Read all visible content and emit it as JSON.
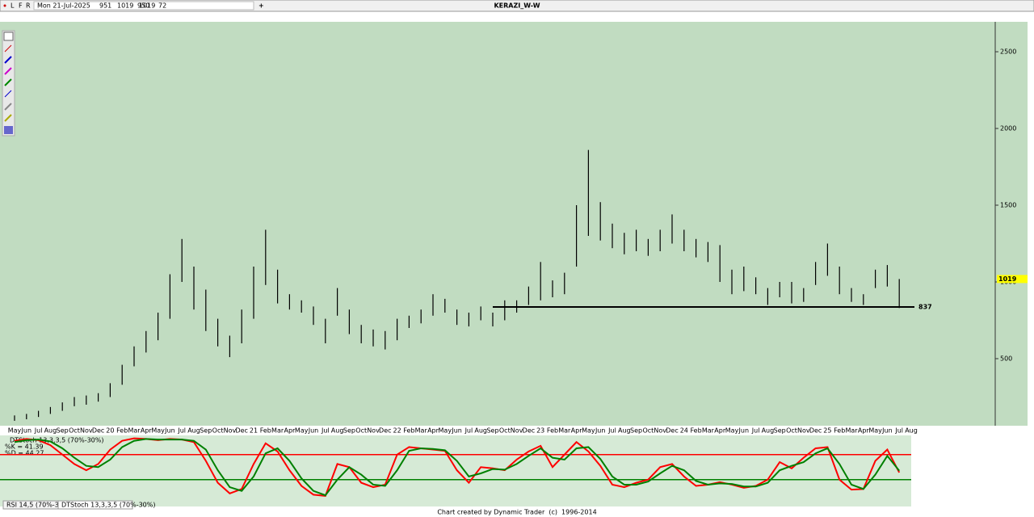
{
  "toolbar": {
    "buttons": [
      "L",
      "F",
      "R"
    ],
    "date": "Mon 21-Jul-2025",
    "open": 951,
    "high": 1019,
    "low": 950,
    "close": 1019,
    "change": 72
  },
  "tabs": [
    "RSI 14,5 (70%-30%)",
    "DTStoch 13,3,3,5 (70%-30%)"
  ],
  "footer": "Chart created by Dynamic Trader  (c)  1996-2014",
  "chart_data": [
    {
      "type": "range",
      "title": "KERAZI_W-W",
      "color": "#000000",
      "categories": [
        "May",
        "Jun",
        "Jul",
        "Aug",
        "Sep",
        "Oct",
        "Nov",
        "Dec",
        "20",
        "Feb",
        "Mar",
        "Apr",
        "May",
        "Jun",
        "Jul",
        "Aug",
        "Sep",
        "Oct",
        "Nov",
        "Dec",
        "21",
        "Feb",
        "Mar",
        "Apr",
        "May",
        "Jun",
        "Jul",
        "Aug",
        "Sep",
        "Oct",
        "Nov",
        "Dec",
        "22",
        "Feb",
        "Mar",
        "Apr",
        "May",
        "Jun",
        "Jul",
        "Aug",
        "Sep",
        "Oct",
        "Nov",
        "Dec",
        "23",
        "Feb",
        "Mar",
        "Apr",
        "May",
        "Jun",
        "Jul",
        "Aug",
        "Sep",
        "Oct",
        "Nov",
        "Dec",
        "24",
        "Feb",
        "Mar",
        "Apr",
        "May",
        "Jun",
        "Jul",
        "Aug",
        "Sep",
        "Oct",
        "Nov",
        "Dec",
        "25",
        "Feb",
        "Mar",
        "Apr",
        "May",
        "Jun",
        "Jul",
        "Aug"
      ],
      "low": [
        95,
        105,
        120,
        140,
        160,
        190,
        200,
        220,
        250,
        330,
        450,
        540,
        620,
        760,
        1000,
        820,
        680,
        580,
        510,
        600,
        760,
        980,
        860,
        820,
        800,
        720,
        600,
        780,
        660,
        600,
        580,
        560,
        620,
        700,
        730,
        780,
        800,
        720,
        710,
        750,
        710,
        750,
        800,
        850,
        880,
        900,
        920,
        1100,
        1300,
        1270,
        1220,
        1180,
        1200,
        1170,
        1200,
        1250,
        1200,
        1160,
        1130,
        1000,
        920,
        940,
        920,
        850,
        900,
        860,
        870,
        980,
        1040,
        920,
        870,
        850,
        960,
        970,
        830,
        null
      ],
      "high": [
        130,
        140,
        160,
        185,
        215,
        250,
        260,
        275,
        340,
        460,
        580,
        680,
        800,
        1050,
        1280,
        1100,
        950,
        760,
        650,
        820,
        1100,
        1340,
        1080,
        920,
        880,
        840,
        760,
        960,
        820,
        720,
        690,
        680,
        760,
        780,
        820,
        920,
        890,
        820,
        800,
        840,
        800,
        880,
        880,
        970,
        1130,
        1010,
        1060,
        1500,
        1860,
        1520,
        1380,
        1320,
        1340,
        1280,
        1340,
        1440,
        1340,
        1280,
        1260,
        1240,
        1080,
        1100,
        1030,
        960,
        1000,
        1000,
        960,
        1130,
        1250,
        1100,
        960,
        920,
        1080,
        1110,
        1019,
        null
      ],
      "ylim": [
        63,
        2695
      ],
      "yticks": [
        500,
        1000,
        1500,
        2000,
        2500
      ],
      "last_value": 1019,
      "last_color": "#ffff00",
      "hline": 837
    },
    {
      "type": "line",
      "title": "DTStoch 13,3,3,5 (70%-30%)",
      "readouts": [
        "%K = 41.39",
        "%D = 44.27"
      ],
      "series": [
        {
          "name": "%K",
          "color": "#ff0000",
          "values": [
            92,
            95,
            93,
            85,
            70,
            55,
            45,
            55,
            78,
            92,
            96,
            95,
            93,
            95,
            94,
            90,
            60,
            25,
            8,
            15,
            55,
            88,
            75,
            45,
            20,
            6,
            4,
            55,
            50,
            25,
            18,
            22,
            70,
            82,
            80,
            78,
            76,
            45,
            25,
            50,
            48,
            45,
            62,
            75,
            84,
            50,
            70,
            90,
            75,
            52,
            22,
            18,
            25,
            30,
            50,
            55,
            35,
            20,
            22,
            26,
            22,
            17,
            20,
            30,
            58,
            48,
            65,
            80,
            82,
            30,
            14,
            15,
            60,
            78,
            41.39,
            null
          ]
        },
        {
          "name": "%D",
          "color": "#008000",
          "values": [
            90,
            93,
            94,
            91,
            80,
            65,
            52,
            50,
            62,
            82,
            92,
            95,
            94,
            94,
            94,
            92,
            78,
            45,
            18,
            12,
            35,
            72,
            80,
            60,
            32,
            12,
            5,
            30,
            50,
            38,
            22,
            20,
            45,
            76,
            80,
            79,
            77,
            60,
            35,
            40,
            47,
            46,
            55,
            68,
            80,
            65,
            62,
            80,
            82,
            63,
            35,
            22,
            22,
            27,
            40,
            52,
            45,
            28,
            22,
            24,
            23,
            19,
            19,
            25,
            45,
            52,
            58,
            72,
            80,
            55,
            22,
            15,
            38,
            68,
            44.27,
            null
          ]
        }
      ],
      "ylim": [
        0,
        100
      ],
      "levels": [
        {
          "value": 70,
          "color": "#ff0000"
        },
        {
          "value": 30,
          "color": "#008000"
        }
      ]
    }
  ]
}
